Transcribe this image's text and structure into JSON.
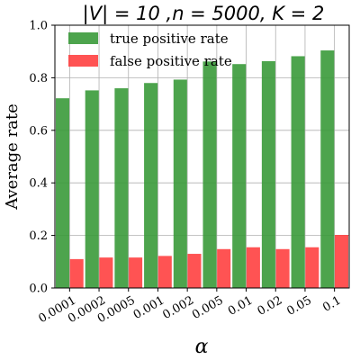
{
  "chart_data": {
    "type": "bar",
    "title": "|V| = 10 ,n = 5000, K = 2",
    "xlabel": "α",
    "ylabel": "Average rate",
    "categories": [
      "0.0001",
      "0.0002",
      "0.0005",
      "0.001",
      "0.002",
      "0.005",
      "0.01",
      "0.02",
      "0.05",
      "0.1"
    ],
    "ylim": [
      0,
      1.0
    ],
    "yticks": [
      "0.0",
      "0.2",
      "0.4",
      "0.6",
      "0.8",
      "1.0"
    ],
    "grid": true,
    "legend_position": "top-left",
    "series": [
      {
        "name": "true positive rate",
        "color": "#3a9a3a",
        "values": [
          0.722,
          0.752,
          0.76,
          0.78,
          0.793,
          0.862,
          0.852,
          0.863,
          0.882,
          0.904
        ]
      },
      {
        "name": "false positive rate",
        "color": "#ff4040",
        "values": [
          0.11,
          0.116,
          0.116,
          0.122,
          0.13,
          0.148,
          0.155,
          0.148,
          0.155,
          0.202
        ]
      }
    ]
  }
}
